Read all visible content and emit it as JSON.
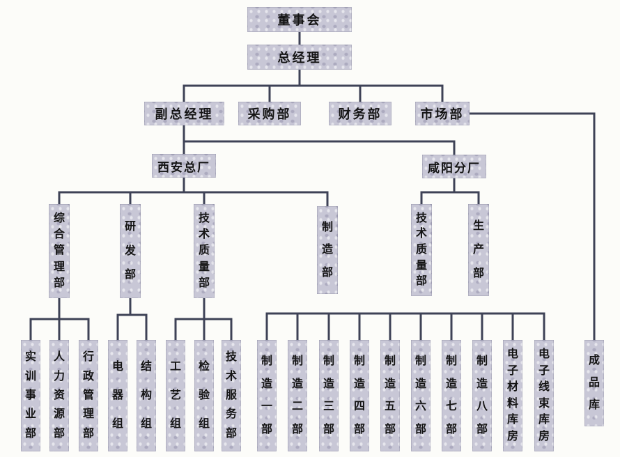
{
  "diagram_type": "org-chart",
  "colors": {
    "box_fill": "#c8c7d6",
    "line": "#3e4256",
    "text": "#141414",
    "background": "#fcfcf9"
  },
  "nodes": {
    "board": {
      "label": "董事会"
    },
    "gm": {
      "label": "总经理"
    },
    "dgm": {
      "label": "副总经理"
    },
    "purchasing": {
      "label": "采购部"
    },
    "finance": {
      "label": "财务部"
    },
    "marketing": {
      "label": "市场部"
    },
    "xian_plant": {
      "label": "西安总厂"
    },
    "xianyang_plant": {
      "label": "咸阳分厂"
    },
    "general_mgmt": {
      "label": "综合管理部"
    },
    "rnd": {
      "label": "研发部"
    },
    "tech_quality_xa": {
      "label": "技术质量部"
    },
    "manufacturing": {
      "label": "制造部"
    },
    "tech_quality_xy": {
      "label": "技术质量部"
    },
    "production": {
      "label": "生产部"
    },
    "training": {
      "label": "实训事业部"
    },
    "hr": {
      "label": "人力资源部"
    },
    "admin": {
      "label": "行政管理部"
    },
    "electrical": {
      "label": "电器组"
    },
    "structure": {
      "label": "结构组"
    },
    "process": {
      "label": "工艺组"
    },
    "inspection": {
      "label": "检验组"
    },
    "tech_service": {
      "label": "技术服务部"
    },
    "mfg1": {
      "label": "制造一部"
    },
    "mfg2": {
      "label": "制造二部"
    },
    "mfg3": {
      "label": "制造三部"
    },
    "mfg4": {
      "label": "制造四部"
    },
    "mfg5": {
      "label": "制造五部"
    },
    "mfg6": {
      "label": "制造六部"
    },
    "mfg7": {
      "label": "制造七部"
    },
    "mfg8": {
      "label": "制造八部"
    },
    "material_warehouse": {
      "label": "电子材料库房"
    },
    "harness_warehouse": {
      "label": "电子线束库房"
    },
    "finished_goods_warehouse": {
      "label": "成品库"
    }
  },
  "hierarchy": [
    {
      "parent": "board",
      "children": [
        "gm"
      ]
    },
    {
      "parent": "gm",
      "children": [
        "dgm",
        "purchasing",
        "finance",
        "marketing"
      ]
    },
    {
      "parent": "marketing",
      "children": [
        "finished_goods_warehouse"
      ]
    },
    {
      "parent": "dgm",
      "children": [
        "xian_plant",
        "xianyang_plant"
      ]
    },
    {
      "parent": "xian_plant",
      "children": [
        "general_mgmt",
        "rnd",
        "tech_quality_xa",
        "manufacturing"
      ]
    },
    {
      "parent": "xianyang_plant",
      "children": [
        "tech_quality_xy",
        "production"
      ]
    },
    {
      "parent": "general_mgmt",
      "children": [
        "training",
        "hr",
        "admin"
      ]
    },
    {
      "parent": "rnd",
      "children": [
        "electrical",
        "structure"
      ]
    },
    {
      "parent": "tech_quality_xa",
      "children": [
        "process",
        "inspection",
        "tech_service"
      ]
    },
    {
      "parent": null,
      "children": [
        "mfg1",
        "mfg2",
        "mfg3",
        "mfg4",
        "mfg5",
        "mfg6",
        "mfg7",
        "mfg8",
        "material_warehouse",
        "harness_warehouse"
      ],
      "note": "shared connector bar has no visible parent link in the scan"
    }
  ]
}
